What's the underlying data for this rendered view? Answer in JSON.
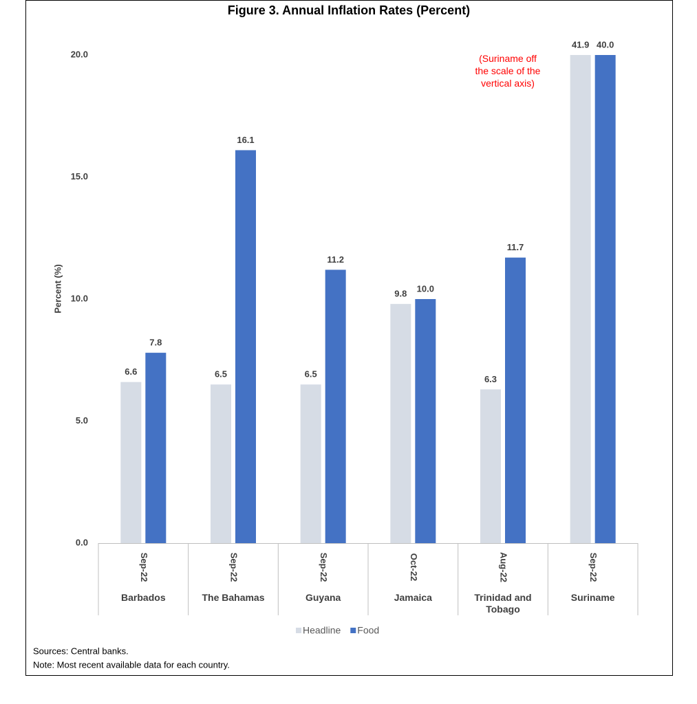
{
  "chart_data": {
    "type": "bar",
    "title": "Figure 3. Annual Inflation Rates (Percent)",
    "y_label": "Percent (%)",
    "categories": [
      "Barbados",
      "The Bahamas",
      "Guyana",
      "Jamaica",
      "Trinidad and Tobago",
      "Suriname"
    ],
    "periods": [
      "Sep-22",
      "Sep-22",
      "Sep-22",
      "Oct-22",
      "Aug-22",
      "Sep-22"
    ],
    "series": [
      {
        "name": "Headline",
        "color": "#d6dce5",
        "values": [
          6.6,
          6.5,
          6.5,
          9.8,
          6.3,
          41.9
        ],
        "value_labels": [
          "6.6",
          "6.5",
          "6.5",
          "9.8",
          "6.3",
          "41.9"
        ]
      },
      {
        "name": "Food",
        "color": "#4472c4",
        "values": [
          7.8,
          16.1,
          11.2,
          10.0,
          11.7,
          40.0
        ],
        "value_labels": [
          "7.8",
          "16.1",
          "11.2",
          "10.0",
          "11.7",
          "40.0"
        ]
      }
    ],
    "ylim": [
      0,
      20
    ],
    "yticks": [
      {
        "value": 0,
        "label": "0.0"
      },
      {
        "value": 5,
        "label": "5.0"
      },
      {
        "value": 10,
        "label": "10.0"
      },
      {
        "value": 15,
        "label": "15.0"
      },
      {
        "value": 20,
        "label": "20.0"
      }
    ],
    "grid": false,
    "annotation": "(Suriname off the scale of the vertical axis)",
    "annotation_color": "#ff0000",
    "sources": "Sources: Central banks.",
    "note": "Note: Most recent available data for each country."
  }
}
